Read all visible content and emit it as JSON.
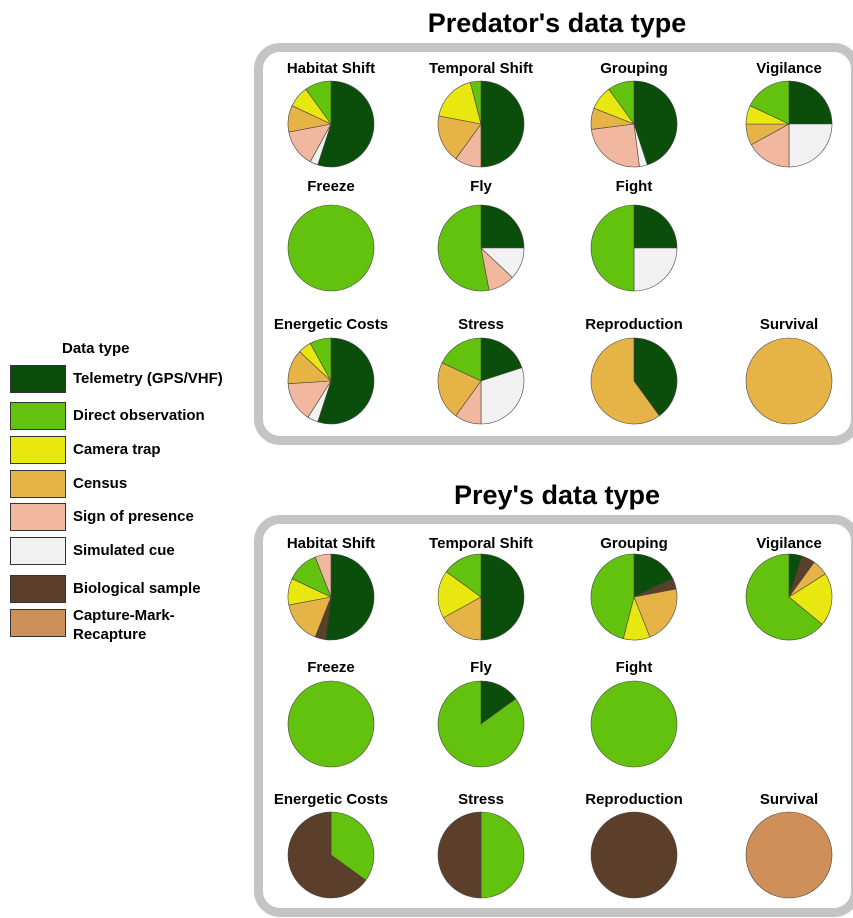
{
  "colors": {
    "telemetry": "#0b4d0b",
    "direct_observation": "#62c20e",
    "camera_trap": "#e8e810",
    "census": "#e6b446",
    "sign_of_presence": "#f1b79f",
    "simulated_cue": "#f1f1f1",
    "biological_sample": "#5b3f2a",
    "capture_mark_recapture": "#cf8f58"
  },
  "legend": {
    "title": "Data type",
    "items": [
      {
        "key": "telemetry",
        "label": "Telemetry (GPS/VHF)"
      },
      {
        "key": "direct_observation",
        "label": "Direct observation"
      },
      {
        "key": "camera_trap",
        "label": "Camera trap"
      },
      {
        "key": "census",
        "label": "Census"
      },
      {
        "key": "sign_of_presence",
        "label": "Sign of presence"
      },
      {
        "key": "simulated_cue",
        "label": "Simulated cue"
      },
      {
        "key": "biological_sample",
        "label": "Biological sample"
      },
      {
        "key": "capture_mark_recapture",
        "label": "Capture-Mark-Recapture"
      }
    ]
  },
  "chart_data": [
    {
      "type": "pie",
      "title": "Predator's data type",
      "pies": [
        {
          "label": "Habitat Shift",
          "slices": [
            {
              "key": "telemetry",
              "value": 55
            },
            {
              "key": "simulated_cue",
              "value": 3
            },
            {
              "key": "sign_of_presence",
              "value": 14
            },
            {
              "key": "census",
              "value": 10
            },
            {
              "key": "camera_trap",
              "value": 8
            },
            {
              "key": "direct_observation",
              "value": 10
            }
          ]
        },
        {
          "label": "Temporal Shift",
          "slices": [
            {
              "key": "telemetry",
              "value": 50
            },
            {
              "key": "sign_of_presence",
              "value": 10
            },
            {
              "key": "census",
              "value": 18
            },
            {
              "key": "camera_trap",
              "value": 18
            },
            {
              "key": "direct_observation",
              "value": 4
            }
          ]
        },
        {
          "label": "Grouping",
          "slices": [
            {
              "key": "telemetry",
              "value": 45
            },
            {
              "key": "simulated_cue",
              "value": 3
            },
            {
              "key": "sign_of_presence",
              "value": 25
            },
            {
              "key": "census",
              "value": 8
            },
            {
              "key": "camera_trap",
              "value": 9
            },
            {
              "key": "direct_observation",
              "value": 10
            }
          ]
        },
        {
          "label": "Vigilance",
          "slices": [
            {
              "key": "telemetry",
              "value": 25
            },
            {
              "key": "simulated_cue",
              "value": 25
            },
            {
              "key": "sign_of_presence",
              "value": 17
            },
            {
              "key": "census",
              "value": 8
            },
            {
              "key": "camera_trap",
              "value": 7
            },
            {
              "key": "direct_observation",
              "value": 18
            }
          ]
        },
        {
          "label": "Freeze",
          "slices": [
            {
              "key": "direct_observation",
              "value": 100
            }
          ]
        },
        {
          "label": "Fly",
          "slices": [
            {
              "key": "telemetry",
              "value": 25
            },
            {
              "key": "simulated_cue",
              "value": 12
            },
            {
              "key": "sign_of_presence",
              "value": 10
            },
            {
              "key": "direct_observation",
              "value": 53
            }
          ]
        },
        {
          "label": "Fight",
          "slices": [
            {
              "key": "telemetry",
              "value": 25
            },
            {
              "key": "simulated_cue",
              "value": 25
            },
            {
              "key": "direct_observation",
              "value": 50
            }
          ]
        },
        {
          "label": "Energetic Costs",
          "slices": [
            {
              "key": "telemetry",
              "value": 55
            },
            {
              "key": "simulated_cue",
              "value": 4
            },
            {
              "key": "sign_of_presence",
              "value": 15
            },
            {
              "key": "census",
              "value": 13
            },
            {
              "key": "camera_trap",
              "value": 5
            },
            {
              "key": "direct_observation",
              "value": 8
            }
          ]
        },
        {
          "label": "Stress",
          "slices": [
            {
              "key": "telemetry",
              "value": 20
            },
            {
              "key": "simulated_cue",
              "value": 30
            },
            {
              "key": "sign_of_presence",
              "value": 10
            },
            {
              "key": "census",
              "value": 22
            },
            {
              "key": "direct_observation",
              "value": 18
            }
          ]
        },
        {
          "label": "Reproduction",
          "slices": [
            {
              "key": "telemetry",
              "value": 40
            },
            {
              "key": "census",
              "value": 60
            }
          ]
        },
        {
          "label": "Survival",
          "slices": [
            {
              "key": "census",
              "value": 100
            }
          ]
        }
      ]
    },
    {
      "type": "pie",
      "title": "Prey's data type",
      "pies": [
        {
          "label": "Habitat Shift",
          "slices": [
            {
              "key": "telemetry",
              "value": 52
            },
            {
              "key": "biological_sample",
              "value": 4
            },
            {
              "key": "census",
              "value": 16
            },
            {
              "key": "camera_trap",
              "value": 10
            },
            {
              "key": "direct_observation",
              "value": 12
            },
            {
              "key": "sign_of_presence",
              "value": 6
            }
          ]
        },
        {
          "label": "Temporal Shift",
          "slices": [
            {
              "key": "telemetry",
              "value": 50
            },
            {
              "key": "census",
              "value": 17
            },
            {
              "key": "camera_trap",
              "value": 18
            },
            {
              "key": "direct_observation",
              "value": 15
            }
          ]
        },
        {
          "label": "Grouping",
          "slices": [
            {
              "key": "telemetry",
              "value": 18
            },
            {
              "key": "biological_sample",
              "value": 4
            },
            {
              "key": "census",
              "value": 22
            },
            {
              "key": "camera_trap",
              "value": 10
            },
            {
              "key": "direct_observation",
              "value": 46
            }
          ]
        },
        {
          "label": "Vigilance",
          "slices": [
            {
              "key": "telemetry",
              "value": 5
            },
            {
              "key": "biological_sample",
              "value": 5
            },
            {
              "key": "census",
              "value": 6
            },
            {
              "key": "camera_trap",
              "value": 20
            },
            {
              "key": "direct_observation",
              "value": 64
            }
          ]
        },
        {
          "label": "Freeze",
          "slices": [
            {
              "key": "direct_observation",
              "value": 100
            }
          ]
        },
        {
          "label": "Fly",
          "slices": [
            {
              "key": "telemetry",
              "value": 15
            },
            {
              "key": "direct_observation",
              "value": 85
            }
          ]
        },
        {
          "label": "Fight",
          "slices": [
            {
              "key": "direct_observation",
              "value": 100
            }
          ]
        },
        {
          "label": "Energetic Costs",
          "slices": [
            {
              "key": "direct_observation",
              "value": 35
            },
            {
              "key": "biological_sample",
              "value": 65
            }
          ]
        },
        {
          "label": "Stress",
          "slices": [
            {
              "key": "direct_observation",
              "value": 50
            },
            {
              "key": "biological_sample",
              "value": 50
            }
          ]
        },
        {
          "label": "Reproduction",
          "slices": [
            {
              "key": "biological_sample",
              "value": 100
            }
          ]
        },
        {
          "label": "Survival",
          "slices": [
            {
              "key": "capture_mark_recapture",
              "value": 100
            }
          ]
        }
      ]
    }
  ]
}
